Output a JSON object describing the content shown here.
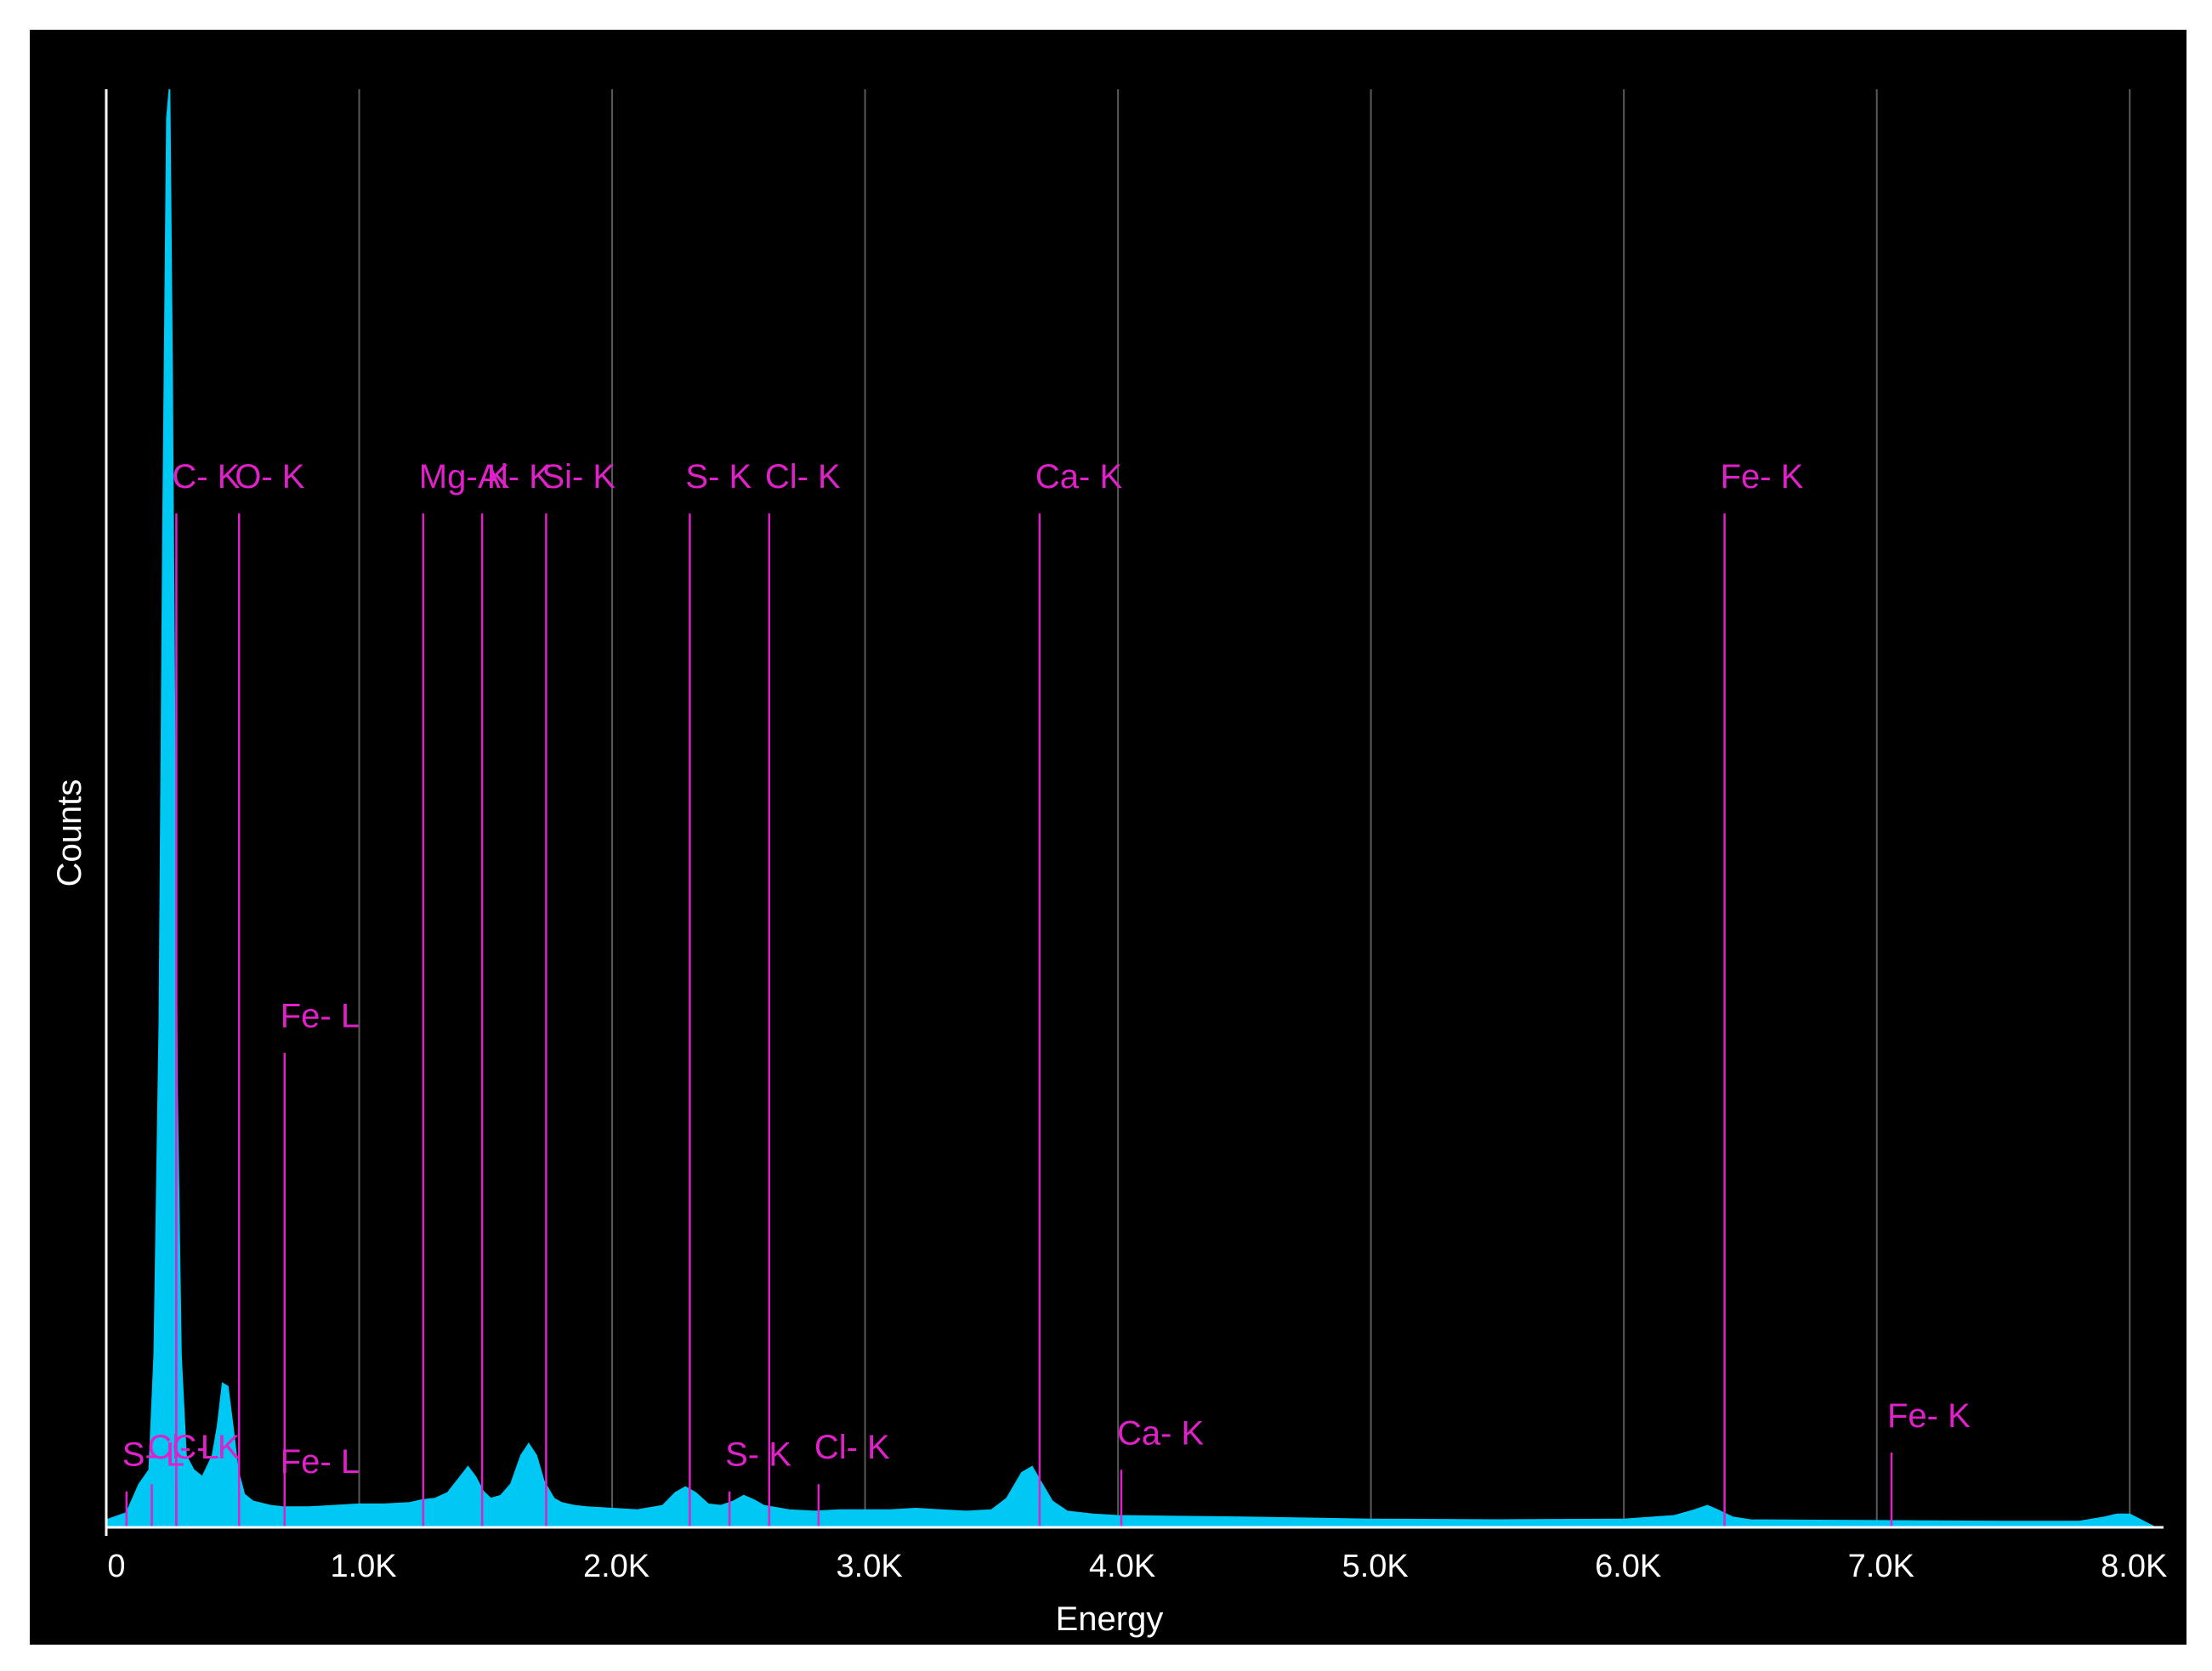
{
  "colors": {
    "background": "#000000",
    "spectrum": "#00c8f5",
    "marker": "#e020c8",
    "grid": "#5a5a5a",
    "axis": "#ffffff",
    "text": "#ffffff"
  },
  "chart_data": {
    "type": "area",
    "title": "",
    "xlabel": "Energy",
    "ylabel": "Counts",
    "xlim": [
      0,
      8100
    ],
    "ylim": [
      0,
      100
    ],
    "grid": true,
    "x_ticks": [
      {
        "value": 0,
        "label": "0"
      },
      {
        "value": 1000,
        "label": "1.0K"
      },
      {
        "value": 2000,
        "label": "2.0K"
      },
      {
        "value": 3000,
        "label": "3.0K"
      },
      {
        "value": 4000,
        "label": "4.0K"
      },
      {
        "value": 5000,
        "label": "5.0K"
      },
      {
        "value": 6000,
        "label": "6.0K"
      },
      {
        "value": 7000,
        "label": "7.0K"
      },
      {
        "value": 8000,
        "label": "8.0K"
      }
    ],
    "series": [
      {
        "x": [
          0,
          80,
          130,
          170,
          190,
          210,
          225,
          240,
          250,
          260,
          270,
          280,
          295,
          315,
          345,
          380,
          420,
          440,
          460,
          480,
          500,
          520,
          545,
          580,
          650,
          700,
          800,
          900,
          1000,
          1100,
          1200,
          1250,
          1300,
          1350,
          1390,
          1430,
          1460,
          1490,
          1520,
          1560,
          1600,
          1640,
          1670,
          1700,
          1730,
          1770,
          1800,
          1850,
          1900,
          2000,
          2100,
          2200,
          2250,
          2290,
          2330,
          2380,
          2430,
          2480,
          2520,
          2560,
          2600,
          2700,
          2800,
          2900,
          3000,
          3100,
          3200,
          3300,
          3400,
          3500,
          3560,
          3620,
          3660,
          3700,
          3740,
          3800,
          3900,
          4000,
          4200,
          4500,
          5000,
          5500,
          6000,
          6200,
          6280,
          6330,
          6370,
          6430,
          6500,
          7000,
          7500,
          7800,
          7900,
          7950,
          8000,
          8100
        ],
        "y": [
          0.5,
          1,
          3,
          4,
          12,
          35,
          70,
          98,
          100,
          80,
          55,
          30,
          12,
          5,
          4,
          3.5,
          5,
          7,
          10,
          9.8,
          7,
          4,
          2.3,
          1.8,
          1.5,
          1.4,
          1.4,
          1.5,
          1.6,
          1.6,
          1.7,
          1.9,
          2,
          2.4,
          3.3,
          4.2,
          3.5,
          2.5,
          2,
          2.2,
          3,
          5,
          5.8,
          5,
          3.2,
          2,
          1.7,
          1.5,
          1.4,
          1.3,
          1.2,
          1.5,
          2.4,
          2.8,
          2.4,
          1.6,
          1.5,
          1.8,
          2.2,
          1.9,
          1.5,
          1.2,
          1.1,
          1.2,
          1.2,
          1.2,
          1.3,
          1.2,
          1.1,
          1.2,
          2,
          3.8,
          4.2,
          3,
          1.8,
          1.1,
          0.9,
          0.8,
          0.75,
          0.7,
          0.55,
          0.5,
          0.55,
          0.8,
          1.2,
          1.5,
          1.2,
          0.7,
          0.5,
          0.45,
          0.4,
          0.4,
          0.7,
          0.9,
          0.9,
          0
        ]
      }
    ],
    "markers_top": [
      {
        "label": "C- K",
        "energy": 277,
        "height": 70.5
      },
      {
        "label": "O- K",
        "energy": 525,
        "height": 70.5
      },
      {
        "label": "Fe- L",
        "energy": 705,
        "height": 33
      },
      {
        "label": "Mg- K",
        "energy": 1253,
        "height": 70.5
      },
      {
        "label": "Al- K",
        "energy": 1486,
        "height": 70.5
      },
      {
        "label": "Si- K",
        "energy": 1739,
        "height": 70.5
      },
      {
        "label": "S- K",
        "energy": 2307,
        "height": 70.5
      },
      {
        "label": "Cl- K",
        "energy": 2621,
        "height": 70.5
      },
      {
        "label": "Ca- K",
        "energy": 3690,
        "height": 70.5
      },
      {
        "label": "Fe- K",
        "energy": 6398,
        "height": 70.5
      }
    ],
    "markers_bottom": [
      {
        "label": "S- L",
        "energy": 80,
        "height": 2.5
      },
      {
        "label": "Cl- L",
        "energy": 180,
        "height": 3
      },
      {
        "label": "C- K",
        "energy": 277,
        "height": 3
      },
      {
        "label": "Fe- L",
        "energy": 705,
        "height": 2
      },
      {
        "label": "S- K",
        "energy": 2464,
        "height": 2.5
      },
      {
        "label": "Cl- K",
        "energy": 2816,
        "height": 3
      },
      {
        "label": "Ca- K",
        "energy": 4013,
        "height": 4
      },
      {
        "label": "Fe- K",
        "energy": 7058,
        "height": 5.2
      }
    ]
  }
}
